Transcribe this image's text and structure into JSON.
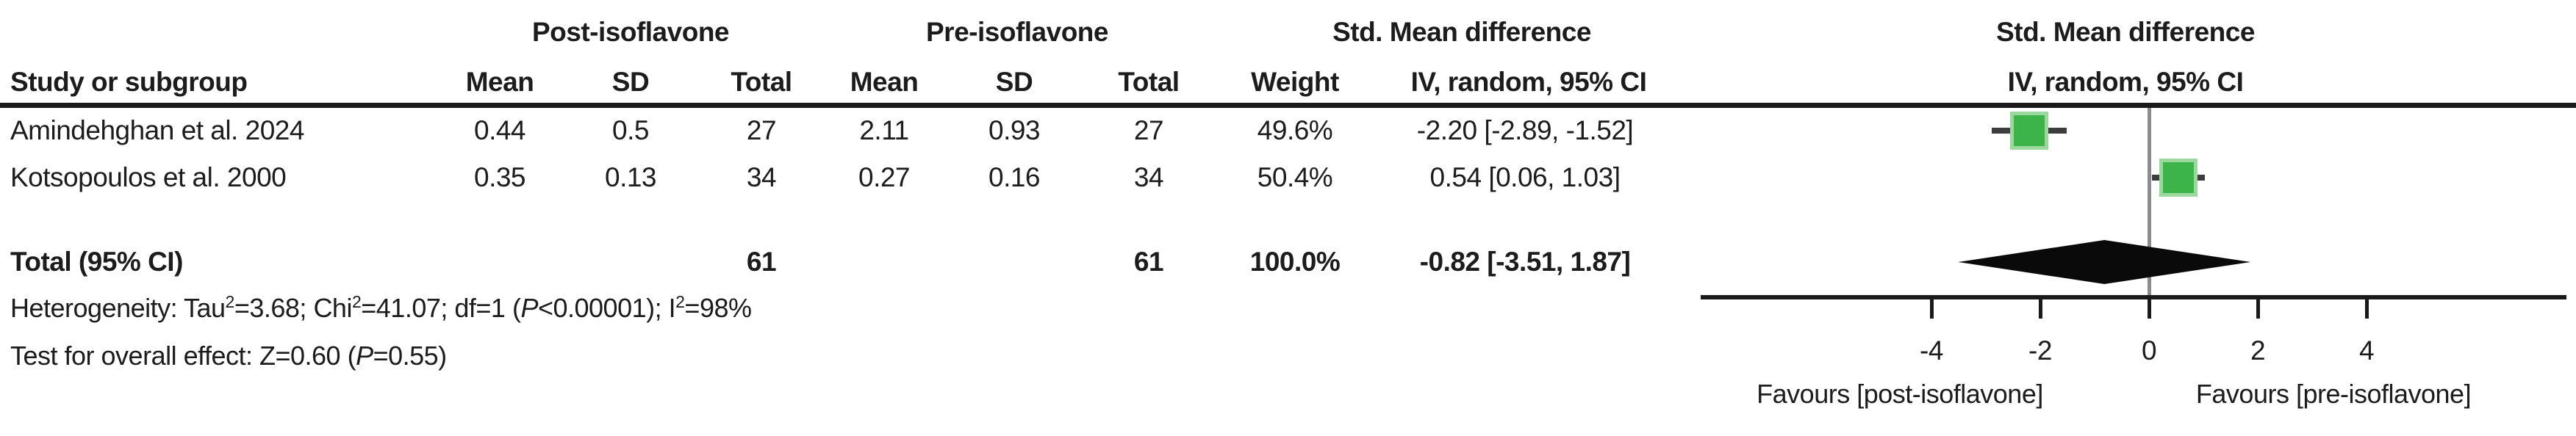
{
  "colors": {
    "marker_green": "#3cb44a",
    "marker_green_border": "#9ad89e",
    "ci_line": "#3d3d3d",
    "zero_line": "#8c8c8c",
    "axis": "#1a1a1a",
    "diamond": "#0a0a0a",
    "text": "#1c1c1c"
  },
  "table": {
    "group_headers": {
      "post": "Post-isoflavone",
      "pre": "Pre-isoflavone",
      "smd": "Std. Mean difference"
    },
    "column_headers": {
      "study": "Study or subgroup",
      "mean": "Mean",
      "sd": "SD",
      "total": "Total",
      "weight": "Weight",
      "iv": "IV, random, 95% CI"
    },
    "total_row": {
      "label": "Total (95% CI)",
      "total_post": "61",
      "total_pre": "61",
      "weight": "100.0%",
      "ci_text": "-0.82 [-3.51, 1.87]"
    }
  },
  "plot_header": {
    "line1": "Std. Mean difference",
    "line2": "IV, random, 95% CI"
  },
  "footnotes": {
    "heterogeneity_parts": [
      {
        "t": "Heterogeneity: Tau"
      },
      {
        "sup": "2"
      },
      {
        "t": "=3.68; Chi"
      },
      {
        "sup": "2"
      },
      {
        "t": "=41.07; df=1 ("
      },
      {
        "i": "P"
      },
      {
        "t": "<0.00001); I"
      },
      {
        "sup": "2"
      },
      {
        "t": "=98%"
      }
    ],
    "overall_effect_parts": [
      {
        "t": "Test for overall effect: Z=0.60 ("
      },
      {
        "i": "P"
      },
      {
        "t": "=0.55)"
      }
    ]
  },
  "chart_data": {
    "type": "scatter",
    "subtype": "forest-plot",
    "title": "Std. Mean difference",
    "subtitle": "IV, random, 95% CI",
    "effect_model": "IV, random, 95% CI",
    "x_ticks": [
      -4,
      -2,
      0,
      2,
      4
    ],
    "x_tick_labels": [
      "-4",
      "-2",
      "0",
      "2",
      "4"
    ],
    "xlim": [
      -8.2,
      7.7
    ],
    "grid": false,
    "legend": false,
    "studies": [
      {
        "label": "Amindehghan et al. 2024",
        "post": {
          "mean": "0.44",
          "sd": "0.5",
          "total": "27"
        },
        "pre": {
          "mean": "2.11",
          "sd": "0.93",
          "total": "27"
        },
        "weight": "49.6%",
        "smd": -2.2,
        "ci_low": -2.89,
        "ci_high": -1.52,
        "ci_text": "-2.20 [-2.89, -1.52]"
      },
      {
        "label": "Kotsopoulos et al. 2000",
        "post": {
          "mean": "0.35",
          "sd": "0.13",
          "total": "34"
        },
        "pre": {
          "mean": "0.27",
          "sd": "0.16",
          "total": "34"
        },
        "weight": "50.4%",
        "smd": 0.54,
        "ci_low": 0.06,
        "ci_high": 1.03,
        "ci_text": "0.54 [0.06, 1.03]"
      }
    ],
    "total": {
      "label": "Total (95% CI)",
      "total_post": 61,
      "total_pre": 61,
      "weight": "100.0%",
      "smd": -0.82,
      "ci_low": -3.51,
      "ci_high": 1.87,
      "ci_text": "-0.82 [-3.51, 1.87]"
    },
    "favours": {
      "left": "Favours [post-isoflavone]",
      "right": "Favours [pre-isoflavone]"
    }
  }
}
